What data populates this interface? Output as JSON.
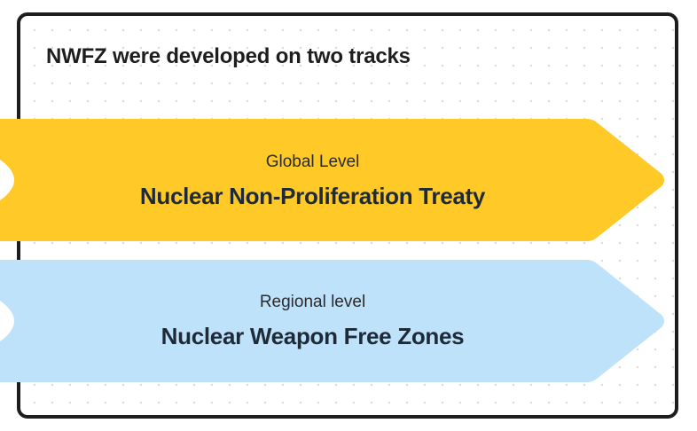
{
  "title": "NWFZ were developed on two tracks",
  "tracks": [
    {
      "level": "Global Level",
      "name": "Nuclear Non-Proliferation Treaty",
      "color": "#ffc928"
    },
    {
      "level": "Regional level",
      "name": "Nuclear Weapon Free Zones",
      "color": "#bfe2fb"
    }
  ]
}
